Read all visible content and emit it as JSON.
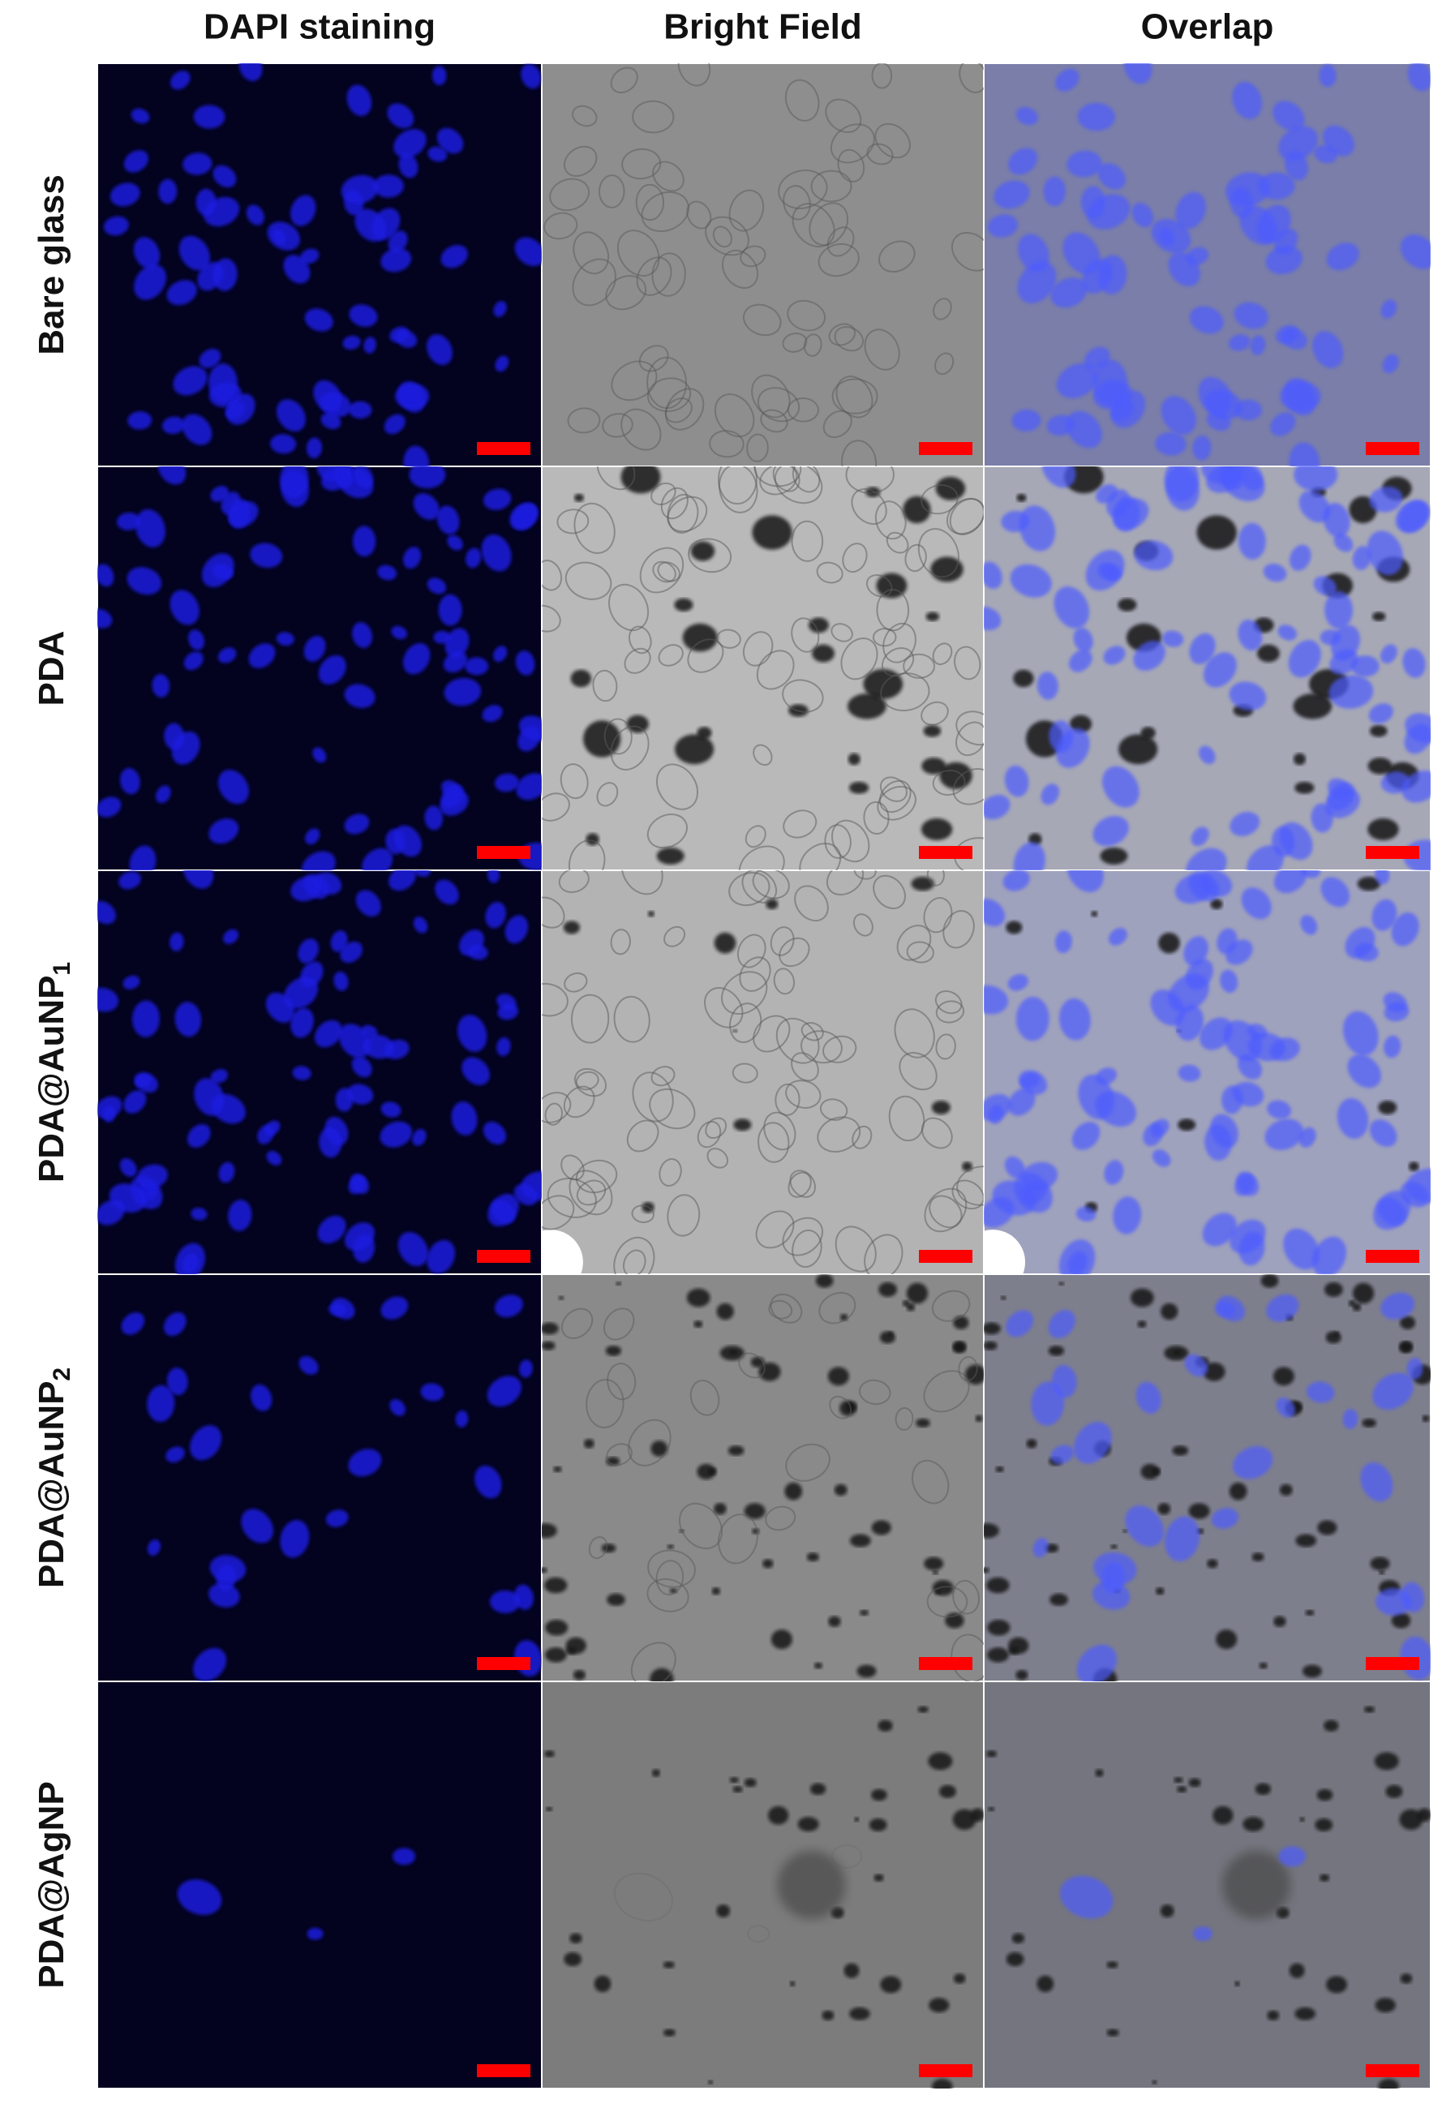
{
  "column_headers": [
    "DAPI staining",
    "Bright Field",
    "Overlap"
  ],
  "rows": [
    {
      "label": "Bare glass"
    },
    {
      "label": "PDA"
    },
    {
      "label": "PDA@AuNP",
      "subscript": "1"
    },
    {
      "label": "PDA@AuNP",
      "subscript": "2"
    },
    {
      "label": "PDA@AgNP"
    }
  ]
}
